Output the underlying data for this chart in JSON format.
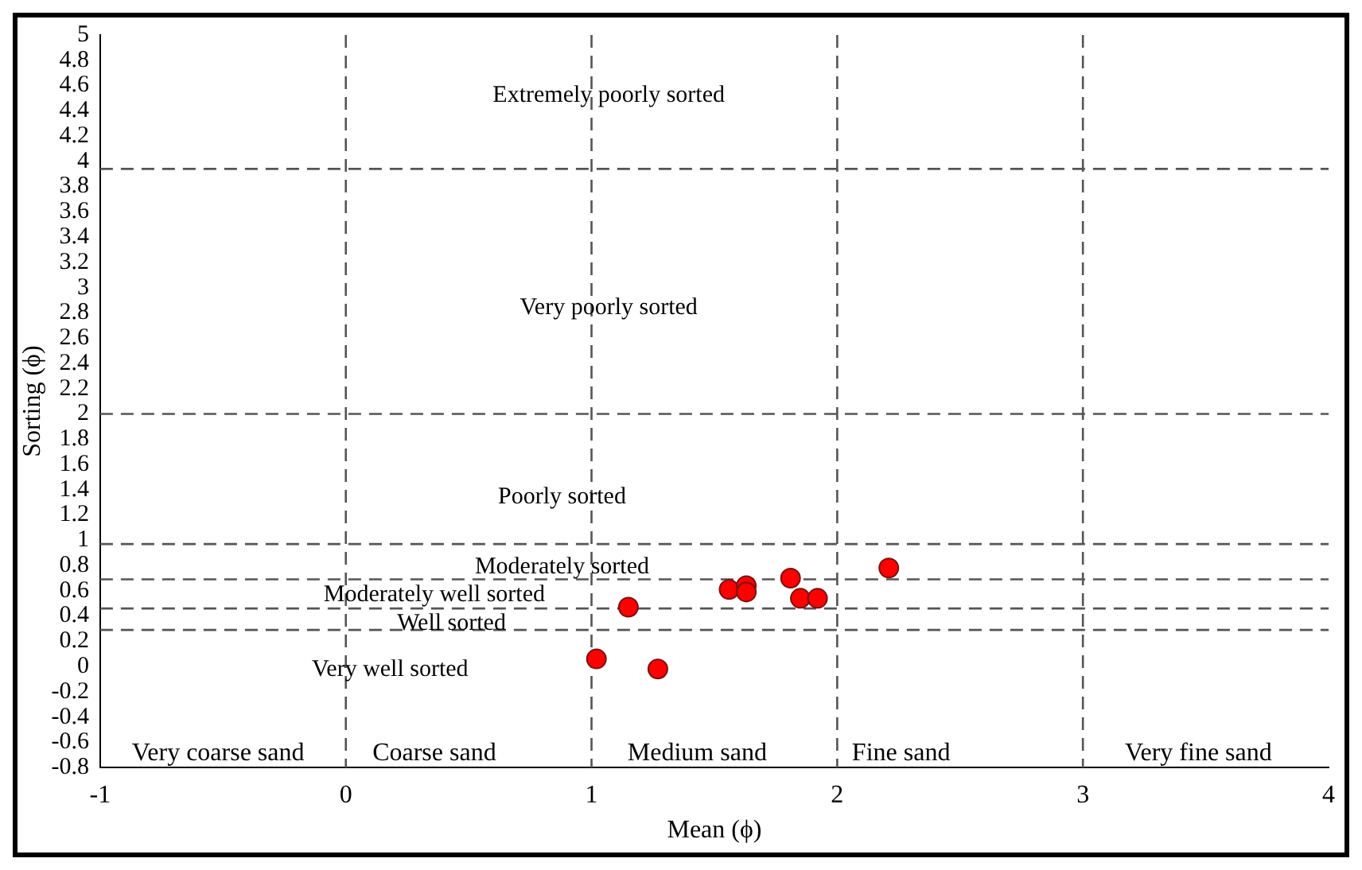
{
  "chart_data": {
    "type": "scatter",
    "xlabel": "Mean (ϕ)",
    "ylabel": "Sorting (ϕ)",
    "x": [
      1.02,
      1.27,
      1.15,
      1.56,
      1.63,
      1.63,
      1.81,
      1.85,
      1.92,
      2.21
    ],
    "values": [
      0.06,
      -0.02,
      0.47,
      0.61,
      0.64,
      0.59,
      0.7,
      0.54,
      0.54,
      0.78
    ],
    "color": "#ff0000",
    "marker": "circle",
    "xlim": [
      -1,
      4
    ],
    "xticks": [
      -1,
      0,
      1,
      2,
      3,
      4
    ],
    "ylim": [
      -0.8,
      5
    ],
    "yticks": [
      -0.8,
      -0.6,
      -0.4,
      -0.2,
      0,
      0.2,
      0.4,
      0.6,
      0.8,
      1,
      1.2,
      1.4,
      1.6,
      1.8,
      2,
      2.2,
      2.4,
      2.6,
      2.8,
      3,
      3.2,
      3.4,
      3.6,
      3.8,
      4,
      4.2,
      4.4,
      4.6,
      4.8,
      5
    ],
    "grid": false,
    "legend": false,
    "ref_lines": [
      {
        "axis": "y",
        "value": 3.94,
        "color": "#555555",
        "line_style": "dashed"
      },
      {
        "axis": "y",
        "value": 2,
        "color": "#555555",
        "line_style": "dashed"
      },
      {
        "axis": "y",
        "value": 0.97,
        "color": "#555555",
        "line_style": "dashed"
      },
      {
        "axis": "y",
        "value": 0.69,
        "color": "#555555",
        "line_style": "dashed"
      },
      {
        "axis": "y",
        "value": 0.46,
        "color": "#555555",
        "line_style": "dashed"
      },
      {
        "axis": "y",
        "value": 0.29,
        "color": "#555555",
        "line_style": "dashed"
      },
      {
        "axis": "x",
        "value": 0,
        "color": "#555555",
        "line_style": "dashed"
      },
      {
        "axis": "x",
        "value": 1,
        "color": "#555555",
        "line_style": "dashed"
      },
      {
        "axis": "x",
        "value": 2,
        "color": "#555555",
        "line_style": "dashed"
      },
      {
        "axis": "x",
        "value": 3,
        "color": "#555555",
        "line_style": "dashed"
      }
    ],
    "annotations": [
      "Extremely poorly sorted",
      "Very poorly sorted",
      "Poorly sorted",
      "Moderately sorted",
      "Moderately well sorted",
      "Well sorted",
      "Very well sorted",
      "Very coarse sand",
      "Coarse sand",
      "Medium sand",
      "Fine sand",
      "Very fine sand"
    ]
  }
}
